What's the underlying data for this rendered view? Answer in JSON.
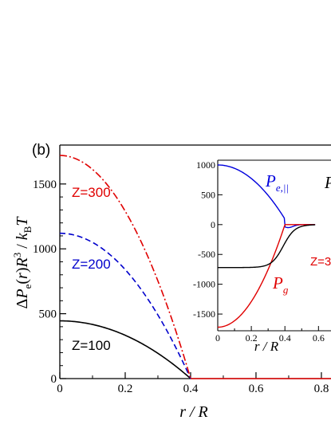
{
  "chart_data": [
    {
      "type": "line",
      "panel_label": "(b)",
      "ylabel_html": "ΔP_e(r)R^3/k_BT",
      "xlabel": "r / R",
      "xlim": [
        0,
        0.85
      ],
      "ylim": [
        0,
        1800
      ],
      "x_ticks": [
        "0",
        "0.2",
        "0.4",
        "0.6",
        "0.8"
      ],
      "y_ticks": [
        "0",
        "500",
        "1000",
        "1500"
      ],
      "series": [
        {
          "name": "Z=100",
          "color": "#000000",
          "dash": "solid",
          "x": [
            0,
            0.1,
            0.2,
            0.3,
            0.35,
            0.4
          ],
          "y": [
            445,
            417,
            334,
            195,
            104,
            0
          ]
        },
        {
          "name": "Z=200",
          "color": "#0000cc",
          "dash": "dashed",
          "x": [
            0,
            0.1,
            0.2,
            0.3,
            0.35,
            0.4
          ],
          "y": [
            1120,
            1050,
            840,
            490,
            262,
            0
          ]
        },
        {
          "name": "Z=300",
          "color": "#e00000",
          "dash": "dashdot",
          "x": [
            0,
            0.1,
            0.2,
            0.3,
            0.35,
            0.4
          ],
          "y": [
            1720,
            1612,
            1290,
            752,
            403,
            0
          ]
        }
      ],
      "labels": {
        "z300": "Z=300",
        "z200": "Z=200",
        "z100": "Z=100"
      }
    },
    {
      "type": "line",
      "inset": true,
      "xlabel": "r / R",
      "xlim": [
        0,
        0.8
      ],
      "ylim": [
        -1800,
        1100
      ],
      "x_ticks": [
        "0",
        "0.2",
        "0.4",
        "0.6"
      ],
      "y_ticks": [
        "1000",
        "500",
        "0",
        "-500",
        "-1000",
        "-1500"
      ],
      "series": [
        {
          "name": "P_e,||",
          "color": "#0000dd",
          "x": [
            0,
            0.1,
            0.2,
            0.3,
            0.4,
            0.5,
            0.6,
            0.7,
            0.8
          ],
          "y": [
            1000,
            930,
            660,
            240,
            -55,
            -8,
            0,
            0,
            0
          ]
        },
        {
          "name": "P_g",
          "color": "#e00000",
          "x": [
            0,
            0.1,
            0.2,
            0.3,
            0.35,
            0.39,
            0.4,
            0.8
          ],
          "y": [
            -1720,
            -1610,
            -1290,
            -750,
            -400,
            -60,
            0,
            0
          ]
        },
        {
          "name": "P_total",
          "color": "#000000",
          "x": [
            0,
            0.1,
            0.2,
            0.3,
            0.35,
            0.4,
            0.45,
            0.5,
            0.6,
            0.8
          ],
          "y": [
            -720,
            -715,
            -690,
            -600,
            -480,
            -260,
            -90,
            -20,
            0,
            0
          ]
        }
      ],
      "labels": {
        "pe_main": "P",
        "pe_sub": "e,||",
        "pg_main": "P",
        "pg_sub": "g",
        "z_cut": "Z=3",
        "p_cut": "P"
      }
    }
  ]
}
